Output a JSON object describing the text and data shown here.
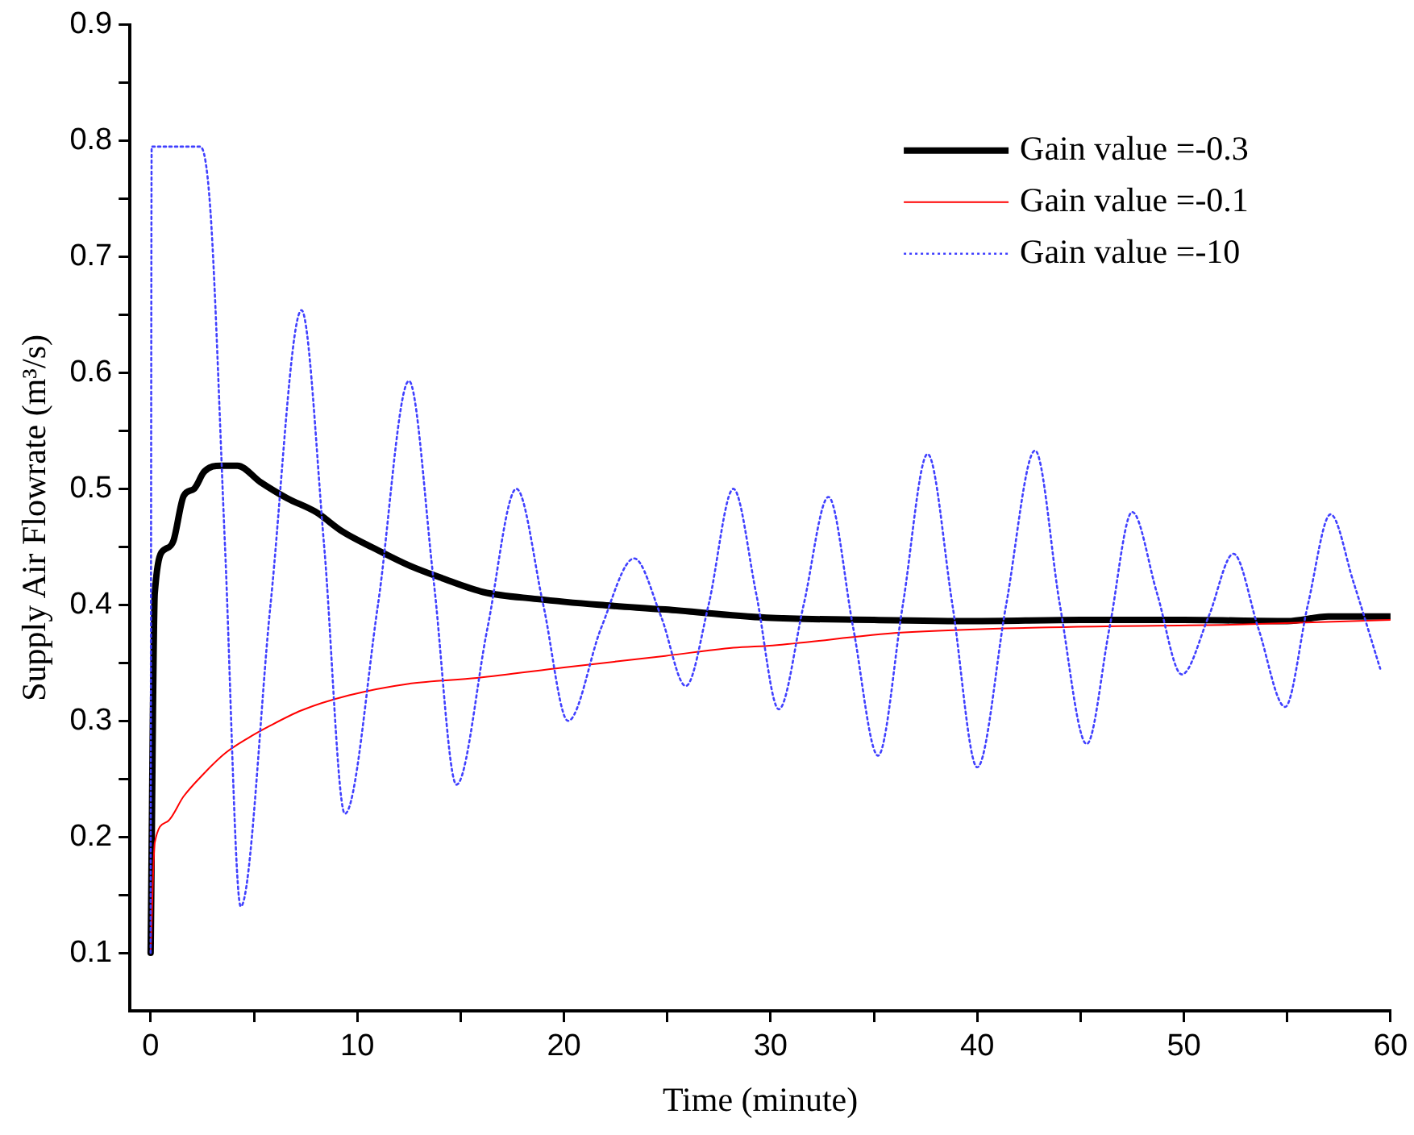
{
  "chart_data": {
    "type": "line",
    "xlabel": "Time (minute)",
    "ylabel": "Supply Air Flowrate (m³/s)",
    "xlim": [
      -1,
      60
    ],
    "ylim": [
      0.05,
      0.9
    ],
    "xticks": [
      0,
      {
        "value": 5,
        "label": null
      },
      10,
      {
        "value": 15,
        "label": null
      },
      20,
      {
        "value": 25,
        "label": null
      },
      30,
      {
        "value": 35,
        "label": null
      },
      40,
      {
        "value": 45,
        "label": null
      },
      50,
      {
        "value": 55,
        "label": null
      },
      60
    ],
    "yticks": [
      0.1,
      {
        "value": 0.15,
        "label": null
      },
      0.2,
      {
        "value": 0.25,
        "label": null
      },
      0.3,
      {
        "value": 0.35,
        "label": null
      },
      0.4,
      {
        "value": 0.45,
        "label": null
      },
      0.5,
      {
        "value": 0.55,
        "label": null
      },
      0.6,
      {
        "value": 0.65,
        "label": null
      },
      0.7,
      {
        "value": 0.75,
        "label": null
      },
      0.8,
      {
        "value": 0.85,
        "label": null
      },
      0.9
    ],
    "grid": false,
    "legend": "top right",
    "marker": "none",
    "series": [
      {
        "name": "Gain value =-0.3",
        "color": "#000000",
        "line_style": "solid",
        "x": [
          0,
          0.2,
          0.7,
          1.1,
          1.6,
          2.1,
          2.6,
          3.4,
          4.2,
          5.3,
          6.6,
          8.0,
          9.3,
          10.9,
          12.5,
          14.1,
          16.1,
          18.7,
          21.7,
          24.9,
          29.8,
          35,
          40,
          45,
          50,
          55,
          57,
          60
        ],
        "values": [
          0.1,
          0.41,
          0.448,
          0.455,
          0.494,
          0.5,
          0.515,
          0.52,
          0.52,
          0.506,
          0.492,
          0.48,
          0.463,
          0.448,
          0.434,
          0.423,
          0.411,
          0.405,
          0.4,
          0.396,
          0.389,
          0.387,
          0.386,
          0.387,
          0.387,
          0.386,
          0.39,
          0.39
        ]
      },
      {
        "name": "Gain value =-0.1",
        "color": "#ff0000",
        "line_style": "solid",
        "x": [
          0,
          0.2,
          0.8,
          1.6,
          2.6,
          3.6,
          4.7,
          5.7,
          7.3,
          9.6,
          12.5,
          15.8,
          20.0,
          24.9,
          28.2,
          30.1,
          36.3,
          44.5,
          52.6,
          60
        ],
        "values": [
          0.1,
          0.195,
          0.213,
          0.235,
          0.255,
          0.272,
          0.285,
          0.295,
          0.309,
          0.322,
          0.332,
          0.337,
          0.346,
          0.356,
          0.363,
          0.365,
          0.376,
          0.381,
          0.383,
          0.387
        ]
      },
      {
        "name": "Gain value =-10",
        "color": "#4040ff",
        "line_style": "dotted",
        "x": [
          0,
          0.05,
          2.4,
          2.9,
          3.6,
          4.36,
          5.8,
          7.3,
          8.4,
          9.4,
          11.0,
          12.5,
          13.7,
          14.8,
          16.3,
          17.7,
          19.0,
          20.2,
          21.8,
          23.4,
          24.7,
          25.9,
          27.0,
          28.2,
          29.3,
          30.4,
          31.6,
          32.8,
          34.0,
          35.2,
          36.4,
          37.6,
          38.8,
          40.0,
          41.4,
          42.8,
          44.0,
          45.3,
          46.4,
          47.5,
          48.7,
          49.9,
          51.2,
          52.4,
          53.6,
          54.9,
          56.0,
          57.1,
          58.2,
          59.5
        ],
        "values": [
          0.1,
          0.795,
          0.795,
          0.738,
          0.45,
          0.14,
          0.4,
          0.654,
          0.45,
          0.22,
          0.4,
          0.593,
          0.42,
          0.245,
          0.38,
          0.5,
          0.4,
          0.3,
          0.38,
          0.44,
          0.39,
          0.33,
          0.4,
          0.5,
          0.41,
          0.31,
          0.4,
          0.493,
          0.38,
          0.27,
          0.4,
          0.53,
          0.4,
          0.26,
          0.4,
          0.533,
          0.4,
          0.28,
          0.38,
          0.48,
          0.41,
          0.34,
          0.39,
          0.444,
          0.38,
          0.312,
          0.4,
          0.478,
          0.42,
          0.345
        ]
      }
    ]
  }
}
